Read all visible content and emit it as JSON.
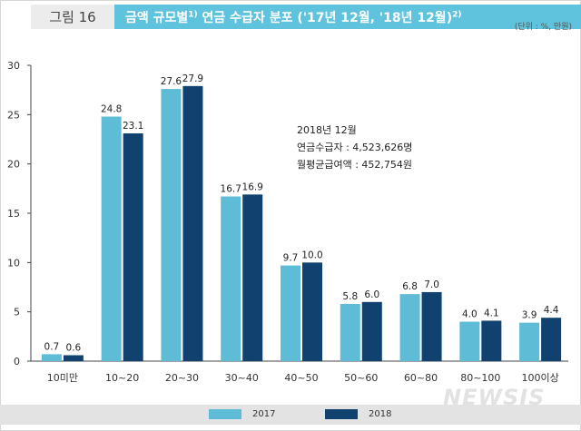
{
  "header": {
    "figure_label": "그림 16",
    "title_main": "금액 규모별",
    "title_sup1": "1)",
    "title_rest": " 연금 수급자 분포 ('17년 12월, '18년 12월)",
    "title_sup2": "2)",
    "unit": "(단위 : %, 만원)"
  },
  "annotation": {
    "line1": "2018년 12월",
    "line2": "연금수급자 : 4,523,626명",
    "line3": "월평균급여액 : 452,754원"
  },
  "watermark": "NEWSIS",
  "colors": {
    "s2017": "#5fbcd6",
    "s2018": "#10416f",
    "title_bar": "#5fc3dd"
  },
  "chart_data": {
    "type": "bar",
    "categories": [
      "10미만",
      "10~20",
      "20~30",
      "30~40",
      "40~50",
      "50~60",
      "60~80",
      "80~100",
      "100이상"
    ],
    "series": [
      {
        "name": "2017",
        "values": [
          0.7,
          24.8,
          27.6,
          16.7,
          9.7,
          5.8,
          6.8,
          4.0,
          3.9
        ]
      },
      {
        "name": "2018",
        "values": [
          0.6,
          23.1,
          27.9,
          16.9,
          10.0,
          6.0,
          7.0,
          4.1,
          4.4
        ]
      }
    ],
    "ylim": [
      0,
      30
    ],
    "yticks": [
      0,
      5,
      10,
      15,
      20,
      25,
      30
    ],
    "grid": false,
    "legend_position": "bottom"
  }
}
